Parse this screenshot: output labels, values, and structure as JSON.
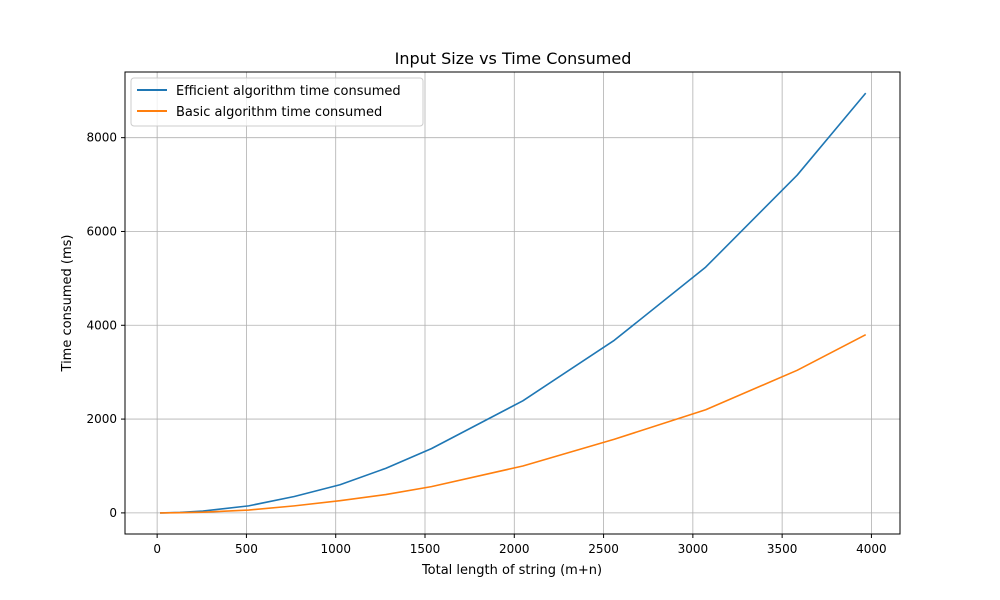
{
  "chart_data": {
    "type": "line",
    "title": "Input Size vs Time Consumed",
    "xlabel": "Total length of string (m+n)",
    "ylabel": "Time consumed (ms)",
    "xlim": [
      -180,
      4160
    ],
    "ylim": [
      -450,
      9400
    ],
    "xticks": [
      0,
      500,
      1000,
      1500,
      2000,
      2500,
      3000,
      3500,
      4000
    ],
    "yticks": [
      0,
      2000,
      4000,
      6000,
      8000
    ],
    "grid": true,
    "legend_position": "upper-left",
    "series": [
      {
        "name": "Efficient algorithm time consumed",
        "color": "#1f77b4",
        "x": [
          16,
          128,
          256,
          512,
          768,
          1024,
          1280,
          1536,
          2048,
          2560,
          3072,
          3584,
          3968
        ],
        "y": [
          0,
          10,
          40,
          150,
          350,
          600,
          950,
          1370,
          2390,
          3680,
          5240,
          7200,
          8950
        ]
      },
      {
        "name": "Basic algorithm time consumed",
        "color": "#ff7f0e",
        "x": [
          16,
          128,
          256,
          512,
          768,
          1024,
          1280,
          1536,
          2048,
          2560,
          3072,
          3584,
          3968
        ],
        "y": [
          0,
          5,
          15,
          60,
          150,
          260,
          390,
          560,
          1000,
          1570,
          2200,
          3040,
          3800
        ]
      }
    ]
  }
}
